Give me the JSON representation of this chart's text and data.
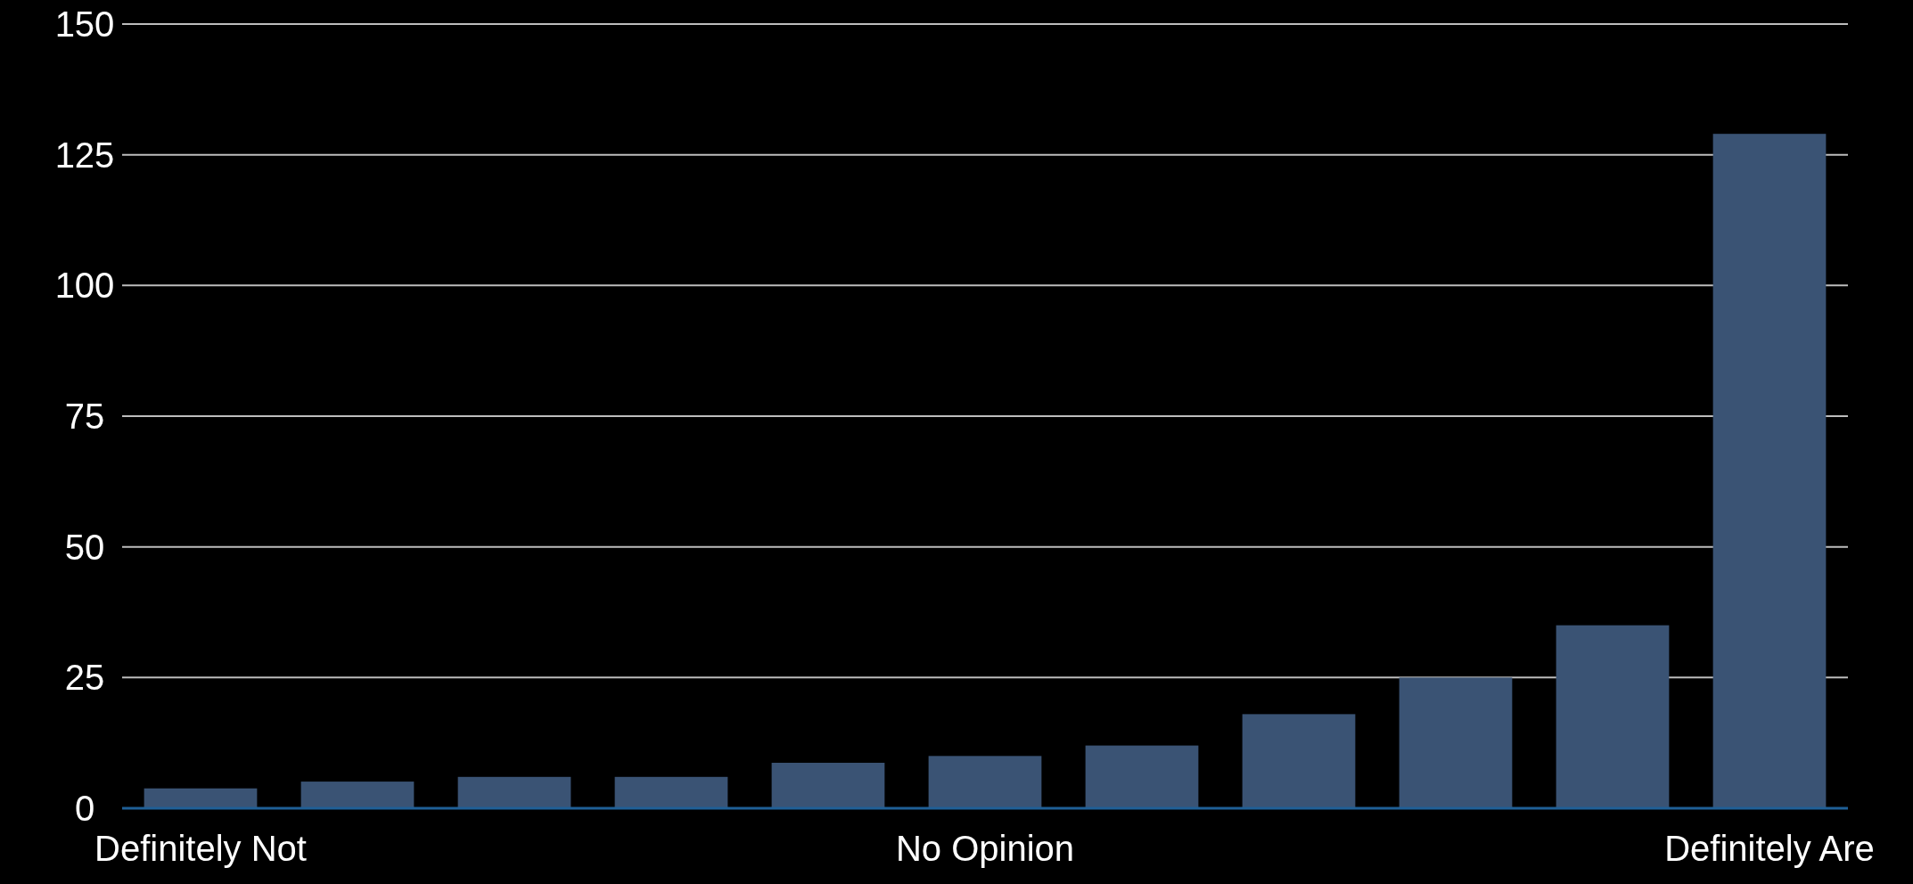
{
  "chart_data": {
    "type": "bar",
    "categories": [
      "Definitely Not",
      null,
      null,
      null,
      null,
      "No Opinion",
      null,
      null,
      null,
      null,
      "Definitely Are"
    ],
    "values": [
      3.8,
      5.1,
      6,
      6,
      8.7,
      10,
      12,
      18,
      25,
      35,
      129
    ],
    "color": "#3a5374",
    "ylim": [
      0,
      150
    ],
    "yticks": [
      0,
      25,
      50,
      75,
      100,
      125,
      150
    ],
    "grid": "y"
  }
}
